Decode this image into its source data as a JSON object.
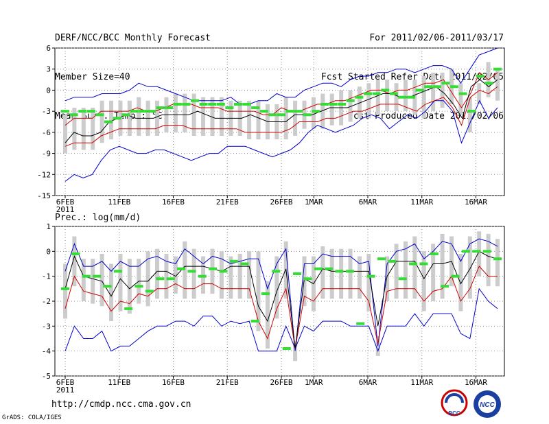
{
  "header": {
    "title": "DERF/NCC/BCC Monthly Forecast",
    "member_size": "Member Size=40",
    "variable": "Mean Surf. Temp.: °C",
    "period": "For 2011/02/06-2011/03/17",
    "refer_date": "Fcst Started Refer Date 2011/02/05",
    "produced_date": "Fcst Produced Date 2011/02/06"
  },
  "footer": {
    "url": "http://cmdp.ncc.cma.gov.cn",
    "grads": "GrADS: COLA/IGES",
    "logo_left": "BCC",
    "logo_right": "NCC"
  },
  "colors": {
    "max_min": "#0000cc",
    "spread": "#cc0000",
    "mean": "#000000",
    "marker": "#33dd33",
    "box": "#cccccc"
  },
  "chart_data": [
    {
      "type": "line",
      "title": "Mean Surf. Temp.: °C",
      "x_tick_labels": [
        "6FEB\n2011",
        "11FEB",
        "16FEB",
        "21FEB",
        "26FEB",
        "1MAR",
        "6MAR",
        "11MAR",
        "16MAR"
      ],
      "ylim": [
        -15,
        6
      ],
      "y_ticks": [
        6,
        3,
        0,
        -3,
        -6,
        -9,
        -12,
        -15
      ],
      "grid": true,
      "days": 40,
      "series": [
        {
          "name": "max",
          "values": [
            -1.5,
            -1,
            -1,
            -1,
            -0.5,
            -0.5,
            -0.5,
            0,
            1,
            0.5,
            0.5,
            0,
            -0.5,
            -1,
            -1.5,
            -1.5,
            -1.5,
            -1.5,
            -1,
            -2,
            -2,
            -1.5,
            -1.5,
            -0.5,
            -1,
            -1,
            0,
            0.5,
            1,
            1,
            0.5,
            1.5,
            2,
            2,
            2.5,
            2.5,
            3,
            3,
            2.5,
            3,
            3.5,
            3.5,
            3,
            1,
            3,
            5,
            5.5,
            6
          ]
        },
        {
          "name": "upper",
          "values": [
            -5,
            -4,
            -4,
            -4,
            -3,
            -3,
            -3,
            -3,
            -2.5,
            -3,
            -3,
            -2.5,
            -2,
            -2,
            -2,
            -2.5,
            -2.5,
            -2.5,
            -3,
            -3,
            -3,
            -3,
            -3.5,
            -3.5,
            -2.5,
            -3,
            -3,
            -2.5,
            -2,
            -2,
            -1.5,
            -1.5,
            -1,
            -0.5,
            0,
            0,
            -0.5,
            0,
            0,
            0.5,
            1,
            1,
            1.5,
            -0.5,
            -2.5,
            -0.5,
            2.5,
            1.5,
            2.5
          ]
        },
        {
          "name": "mean",
          "values": [
            -7.5,
            -6,
            -6.5,
            -6.5,
            -6,
            -4.5,
            -4,
            -3.5,
            -4,
            -4,
            -4,
            -3.5,
            -3.5,
            -3.5,
            -3.5,
            -3,
            -3.5,
            -4,
            -4,
            -4,
            -4,
            -3.5,
            -4,
            -4.5,
            -4.5,
            -4.5,
            -3.5,
            -3.5,
            -3.5,
            -3,
            -2.5,
            -2.5,
            -2.5,
            -2,
            -1.5,
            -1,
            -0.5,
            -0.5,
            -1,
            -1,
            -0.5,
            0,
            0.5,
            -0.5,
            -2,
            -4,
            0.5,
            1.5,
            0.5,
            1.5
          ]
        },
        {
          "name": "lower",
          "values": [
            -8,
            -7.5,
            -7.5,
            -7.5,
            -6.5,
            -6,
            -5.5,
            -5.5,
            -5.5,
            -5.5,
            -5.5,
            -5,
            -5,
            -5,
            -5.5,
            -5.5,
            -5.5,
            -5.5,
            -5.5,
            -5.5,
            -6,
            -6,
            -6,
            -6,
            -6,
            -5.5,
            -4.5,
            -4.5,
            -4.5,
            -4,
            -4,
            -3.5,
            -3,
            -3,
            -2.5,
            -2,
            -2,
            -2,
            -2.5,
            -3,
            -2,
            -1.5,
            -1,
            -2.5,
            -5,
            -1,
            0,
            -0.5,
            0.5
          ]
        },
        {
          "name": "min",
          "values": [
            -13,
            -12,
            -12.5,
            -12,
            -10,
            -8.5,
            -8,
            -8.5,
            -9,
            -9,
            -8.5,
            -8.5,
            -9,
            -9.5,
            -10,
            -9.5,
            -9,
            -9,
            -8,
            -8,
            -8,
            -8.5,
            -9,
            -9.5,
            -9,
            -8.5,
            -7.5,
            -6,
            -5,
            -5.5,
            -6,
            -5.5,
            -5,
            -4,
            -3.5,
            -4,
            -5.5,
            -4.5,
            -3.5,
            -4,
            -3,
            -1.5,
            -1.5,
            -3,
            -7.5,
            -4.5,
            -1.5,
            -4,
            -2.5
          ]
        },
        {
          "name": "marker",
          "values": [
            -3,
            -3.5,
            -3,
            -3,
            -3.5,
            -4.5,
            -4,
            -3.5,
            -3,
            -3,
            -3,
            -2.5,
            -2.5,
            -2,
            -2,
            -1.5,
            -2,
            -2,
            -2,
            -2.5,
            -2,
            -2,
            -2.5,
            -3,
            -3.5,
            -3.5,
            -3,
            -3,
            -3.5,
            -3,
            -2,
            -2,
            -2,
            -1.5,
            -1,
            -0.5,
            -0.5,
            0,
            -0.5,
            -1,
            -1,
            0,
            0.5,
            0.5,
            1,
            0.5,
            -0.5,
            -3,
            2,
            1,
            3
          ]
        }
      ]
    },
    {
      "type": "line",
      "title": "Prec.: log(mm/d)",
      "x_tick_labels": [
        "6FEB\n2011",
        "11FEB",
        "16FEB",
        "21FEB",
        "26FEB",
        "1MAR",
        "6MAR",
        "11MAR",
        "16MAR"
      ],
      "ylim": [
        -5,
        1
      ],
      "y_ticks": [
        1,
        0,
        -1,
        -2,
        -3,
        -4,
        -5
      ],
      "grid": true,
      "series": [
        {
          "name": "max",
          "values": [
            -0.8,
            0.3,
            -0.6,
            -0.6,
            -0.4,
            -0.8,
            -0.4,
            -0.6,
            -0.6,
            -0.3,
            -0.2,
            -0.4,
            -0.5,
            0.1,
            -0.2,
            -0.5,
            -0.2,
            -0.3,
            -0.5,
            -0.4,
            -0.3,
            -0.3,
            -1.5,
            -0.5,
            0.1,
            -4,
            -0.5,
            -0.5,
            -0.1,
            -0.2,
            -0.2,
            -0.2,
            -0.5,
            -0.4,
            -3.8,
            -0.5,
            0,
            0.1,
            0.3,
            -0.3,
            0,
            0.4,
            0.3,
            -0.4,
            0.3,
            0.5,
            0.4,
            0.2
          ]
        },
        {
          "name": "mean",
          "values": [
            -1.5,
            -0.2,
            -1,
            -1.1,
            -1.2,
            -1.8,
            -1.1,
            -1.5,
            -1.2,
            -1.2,
            -0.8,
            -0.8,
            -1,
            -0.6,
            -0.6,
            -0.6,
            -0.7,
            -0.8,
            -0.6,
            -0.6,
            -0.6,
            -2.2,
            -2.8,
            -1.6,
            -0.7,
            -3.9,
            -1.1,
            -1.3,
            -0.7,
            -0.8,
            -0.8,
            -0.8,
            -0.8,
            -0.8,
            -3,
            -1,
            -0.4,
            -0.4,
            -0.4,
            -1.1,
            -0.5,
            -0.5,
            -0.4,
            -1.3,
            -0.7,
            0,
            -0.2,
            -0.3
          ]
        },
        {
          "name": "lower",
          "values": [
            -2.3,
            -1,
            -1.6,
            -1.7,
            -1.8,
            -2.4,
            -2,
            -2.1,
            -1.7,
            -1.8,
            -1.5,
            -1.5,
            -1.3,
            -1.5,
            -1.5,
            -1.3,
            -1.3,
            -1.5,
            -1.5,
            -1.5,
            -1.5,
            -2.8,
            -3.5,
            -2.3,
            -1.5,
            -3.9,
            -1.8,
            -2,
            -1.5,
            -1.5,
            -1.5,
            -1.5,
            -1.5,
            -2,
            -3.7,
            -1.6,
            -1.5,
            -1.5,
            -1.5,
            -2,
            -1.6,
            -1.5,
            -1,
            -2,
            -1.5,
            -0.6,
            -1,
            -1
          ]
        },
        {
          "name": "min",
          "values": [
            -4,
            -3,
            -3.5,
            -3.5,
            -3.2,
            -4,
            -3.8,
            -3.8,
            -3.5,
            -3.2,
            -3,
            -3,
            -2.8,
            -2.8,
            -3,
            -2.6,
            -2.6,
            -3,
            -2.8,
            -2.9,
            -2.8,
            -4,
            -4,
            -4,
            -3,
            -3.9,
            -3,
            -3.2,
            -2.8,
            -2.8,
            -2.8,
            -3,
            -3,
            -3,
            -4,
            -3,
            -3,
            -3,
            -2.5,
            -3,
            -2.5,
            -2.5,
            -2.5,
            -3.3,
            -3.5,
            -1.5,
            -2,
            -2.3
          ]
        },
        {
          "name": "marker",
          "values": [
            -1.5,
            -0.1,
            -1,
            -1,
            -1.4,
            -0.8,
            -2.3,
            -1.4,
            -1.6,
            -1.1,
            -1.1,
            -0.7,
            -0.8,
            -1,
            -0.7,
            -0.8,
            -0.4,
            -0.5,
            -2.8,
            -1.7,
            -0.8,
            -3.9,
            -0.9,
            -1.1,
            -0.7,
            -0.7,
            -0.8,
            -0.8,
            -2.9,
            -1,
            -0.3,
            -0.4,
            -1.1,
            -0.5,
            -0.5,
            -0.1,
            -1.4,
            -1,
            0,
            0,
            0,
            -0.3
          ]
        }
      ]
    }
  ]
}
